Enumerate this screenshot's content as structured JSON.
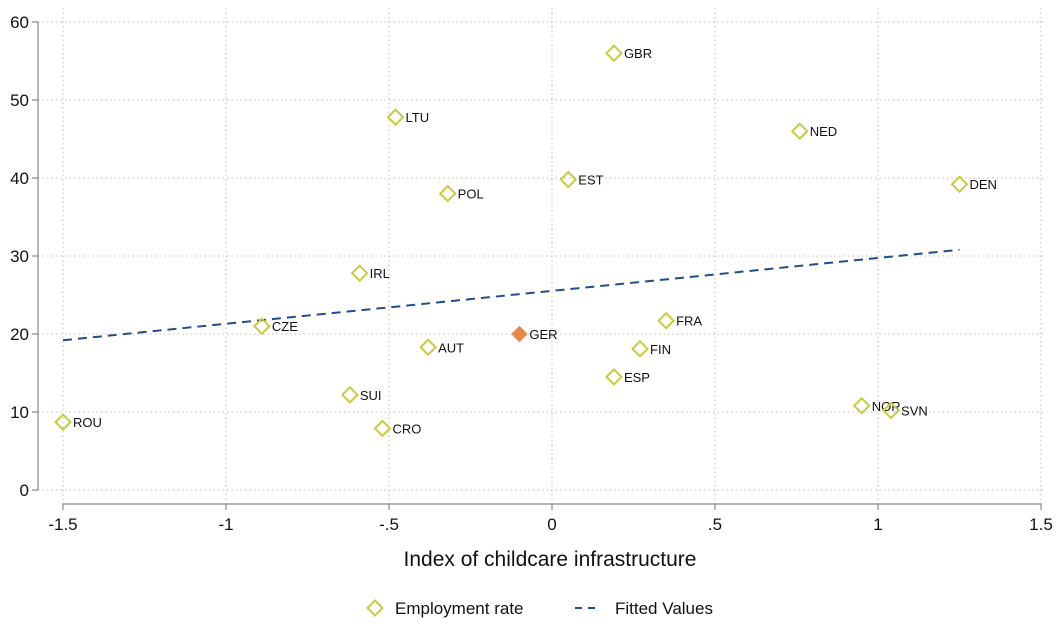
{
  "chart_data": {
    "type": "scatter",
    "xlabel": "Index of childcare infrastructure",
    "ylabel": "",
    "xlim": [
      -1.5,
      1.5
    ],
    "ylim": [
      0,
      60
    ],
    "x_ticks": [
      -1.5,
      -1,
      -0.5,
      0,
      0.5,
      1,
      1.5
    ],
    "x_tick_labels": [
      "-1.5",
      "-1",
      "-.5",
      "0",
      ".5",
      "1",
      "1.5"
    ],
    "y_ticks": [
      0,
      10,
      20,
      30,
      40,
      50,
      60
    ],
    "y_tick_labels": [
      "0",
      "10",
      "20",
      "30",
      "40",
      "50",
      "60"
    ],
    "grid": true,
    "legend_position": "bottom",
    "series": [
      {
        "name": "Employment rate",
        "marker": "hollow-diamond",
        "color": "#c8cc3c",
        "points": [
          {
            "label": "GBR",
            "x": 0.19,
            "y": 56
          },
          {
            "label": "LTU",
            "x": -0.48,
            "y": 47.8
          },
          {
            "label": "NED",
            "x": 0.76,
            "y": 46
          },
          {
            "label": "EST",
            "x": 0.05,
            "y": 39.8
          },
          {
            "label": "DEN",
            "x": 1.25,
            "y": 39.2
          },
          {
            "label": "POL",
            "x": -0.32,
            "y": 38
          },
          {
            "label": "IRL",
            "x": -0.59,
            "y": 27.8
          },
          {
            "label": "CZE",
            "x": -0.89,
            "y": 21
          },
          {
            "label": "FRA",
            "x": 0.35,
            "y": 21.7
          },
          {
            "label": "AUT",
            "x": -0.38,
            "y": 18.3
          },
          {
            "label": "FIN",
            "x": 0.27,
            "y": 18.1
          },
          {
            "label": "ESP",
            "x": 0.19,
            "y": 14.5
          },
          {
            "label": "SUI",
            "x": -0.62,
            "y": 12.2
          },
          {
            "label": "NOR",
            "x": 0.95,
            "y": 10.8
          },
          {
            "label": "SVN",
            "x": 1.04,
            "y": 10.2
          },
          {
            "label": "ROU",
            "x": -1.5,
            "y": 8.7
          },
          {
            "label": "CRO",
            "x": -0.52,
            "y": 7.9
          }
        ]
      },
      {
        "name": "Employment rate",
        "legend": false,
        "marker": "filled-diamond",
        "color": "#e8874a",
        "points": [
          {
            "label": "GER",
            "x": -0.1,
            "y": 20
          }
        ]
      },
      {
        "name": "Fitted Values",
        "type": "line",
        "style": "dashed",
        "color": "#1f4e8c",
        "x": [
          -1.5,
          1.25
        ],
        "y": [
          19.2,
          30.8
        ]
      }
    ],
    "legend": [
      {
        "label": "Employment rate",
        "marker": "hollow-diamond",
        "color": "#c8cc3c"
      },
      {
        "label": "Fitted Values",
        "marker": "dashed-line",
        "color": "#1f4e8c"
      }
    ]
  }
}
